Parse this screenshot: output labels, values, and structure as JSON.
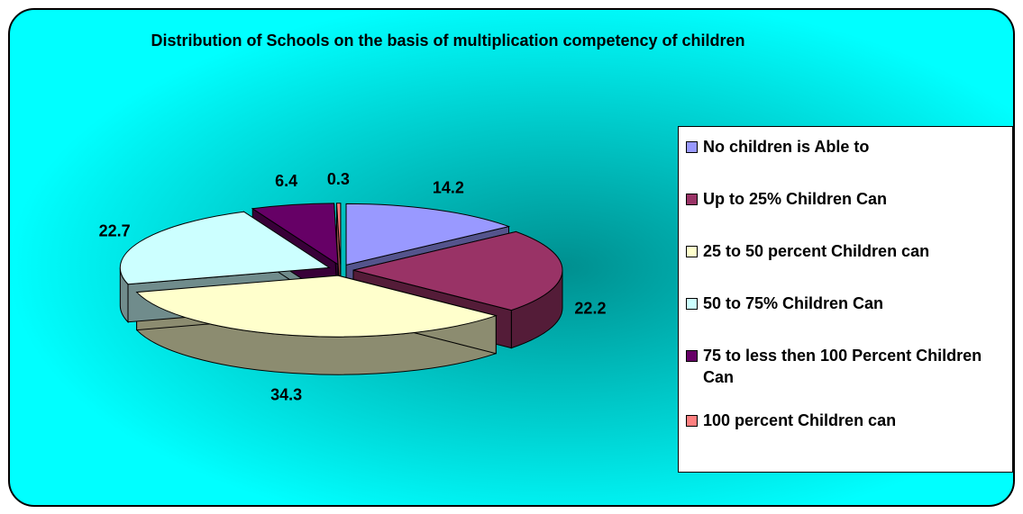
{
  "chart_data": {
    "type": "pie",
    "title": "Distribution of Schools on the basis of multiplication competency of children",
    "categories": [
      "No children is Able to",
      "Up to 25% Children Can",
      "25 to 50 percent Children can",
      "50 to 75% Children Can",
      "75 to less then 100 Percent Children Can",
      "100 percent Children can"
    ],
    "values": [
      14.2,
      22.2,
      34.3,
      22.7,
      6.4,
      0.3
    ],
    "colors": [
      "#9999ff",
      "#993366",
      "#ffffcc",
      "#ccffff",
      "#660066",
      "#ff8080"
    ],
    "legend": "right"
  }
}
